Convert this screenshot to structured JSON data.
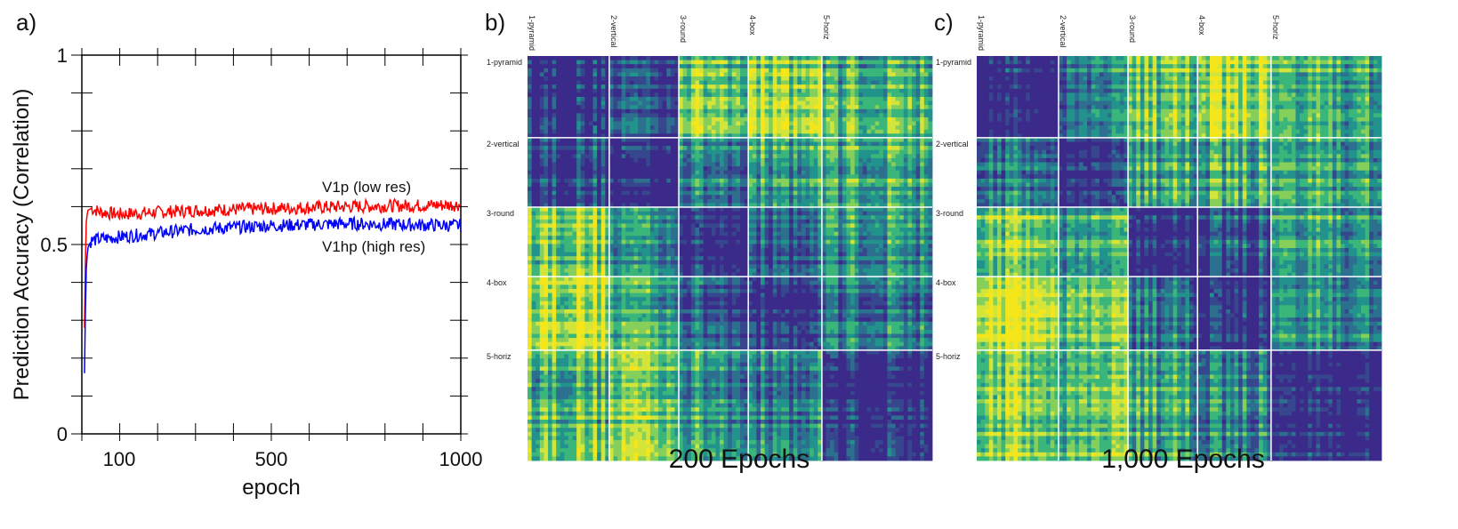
{
  "panel_a": {
    "letter": "a)",
    "xlabel": "epoch",
    "ylabel": "Prediction Accuracy (Correlation)",
    "annotations": [
      {
        "text": "V1p (low res)"
      },
      {
        "text": "V1hp (high res)"
      }
    ]
  },
  "panel_b": {
    "letter": "b)",
    "caption": "200 Epochs"
  },
  "panel_c": {
    "letter": "c)",
    "caption": "1,000 Epochs"
  },
  "colors": {
    "v1p": "#ff0000",
    "v1hp": "#0000ff",
    "viridis": [
      "#3b2a8a",
      "#36478d",
      "#2c6f8e",
      "#22928c",
      "#3bb67a",
      "#86cf5a",
      "#d3e43a",
      "#f5e61c"
    ]
  },
  "chart_data": [
    {
      "type": "line",
      "title": "",
      "xlabel": "epoch",
      "ylabel": "Prediction Accuracy (Correlation)",
      "xscale": "log-like (tick labels 100, 500, 1000)",
      "xlim": [
        1,
        1000
      ],
      "ylim": [
        0,
        1
      ],
      "x_tick_labels": [
        "100",
        "500",
        "1000"
      ],
      "y_tick_labels": [
        "0",
        "0.5",
        "1"
      ],
      "series": [
        {
          "name": "V1p (low res)",
          "color": "#ff0000",
          "x": [
            1,
            5,
            10,
            20,
            50,
            100,
            200,
            300,
            500,
            700,
            1000
          ],
          "y": [
            0.28,
            0.55,
            0.59,
            0.595,
            0.585,
            0.58,
            0.585,
            0.59,
            0.595,
            0.6,
            0.605
          ]
        },
        {
          "name": "V1hp (high res)",
          "color": "#0000ff",
          "x": [
            1,
            5,
            10,
            20,
            50,
            100,
            200,
            300,
            500,
            700,
            1000
          ],
          "y": [
            0.16,
            0.42,
            0.49,
            0.51,
            0.515,
            0.52,
            0.53,
            0.54,
            0.55,
            0.555,
            0.55
          ]
        }
      ]
    },
    {
      "type": "heatmap",
      "title": "200 Epochs",
      "row_labels": [
        "1-pyramid",
        "2-vertical",
        "3-round",
        "4-box",
        "5-horiz"
      ],
      "col_labels": [
        "1-pyramid",
        "2-vertical",
        "3-round",
        "4-box",
        "5-horiz"
      ],
      "block_sizes": [
        20,
        17,
        17,
        18,
        27
      ],
      "block_similarity": [
        [
          0.05,
          0.2,
          0.65,
          0.7,
          0.55
        ],
        [
          0.2,
          0.1,
          0.4,
          0.5,
          0.55
        ],
        [
          0.7,
          0.45,
          0.1,
          0.25,
          0.45
        ],
        [
          0.8,
          0.55,
          0.25,
          0.1,
          0.35
        ],
        [
          0.6,
          0.7,
          0.45,
          0.35,
          0.08
        ]
      ]
    },
    {
      "type": "heatmap",
      "title": "1,000 Epochs",
      "row_labels": [
        "1-pyramid",
        "2-vertical",
        "3-round",
        "4-box",
        "5-horiz"
      ],
      "col_labels": [
        "1-pyramid",
        "2-vertical",
        "3-round",
        "4-box",
        "5-horiz"
      ],
      "block_sizes": [
        20,
        17,
        17,
        18,
        27
      ],
      "block_similarity": [
        [
          0.05,
          0.35,
          0.65,
          0.8,
          0.55
        ],
        [
          0.35,
          0.08,
          0.5,
          0.55,
          0.5
        ],
        [
          0.7,
          0.5,
          0.08,
          0.25,
          0.5
        ],
        [
          0.85,
          0.6,
          0.3,
          0.08,
          0.4
        ],
        [
          0.7,
          0.6,
          0.5,
          0.4,
          0.06
        ]
      ]
    }
  ]
}
